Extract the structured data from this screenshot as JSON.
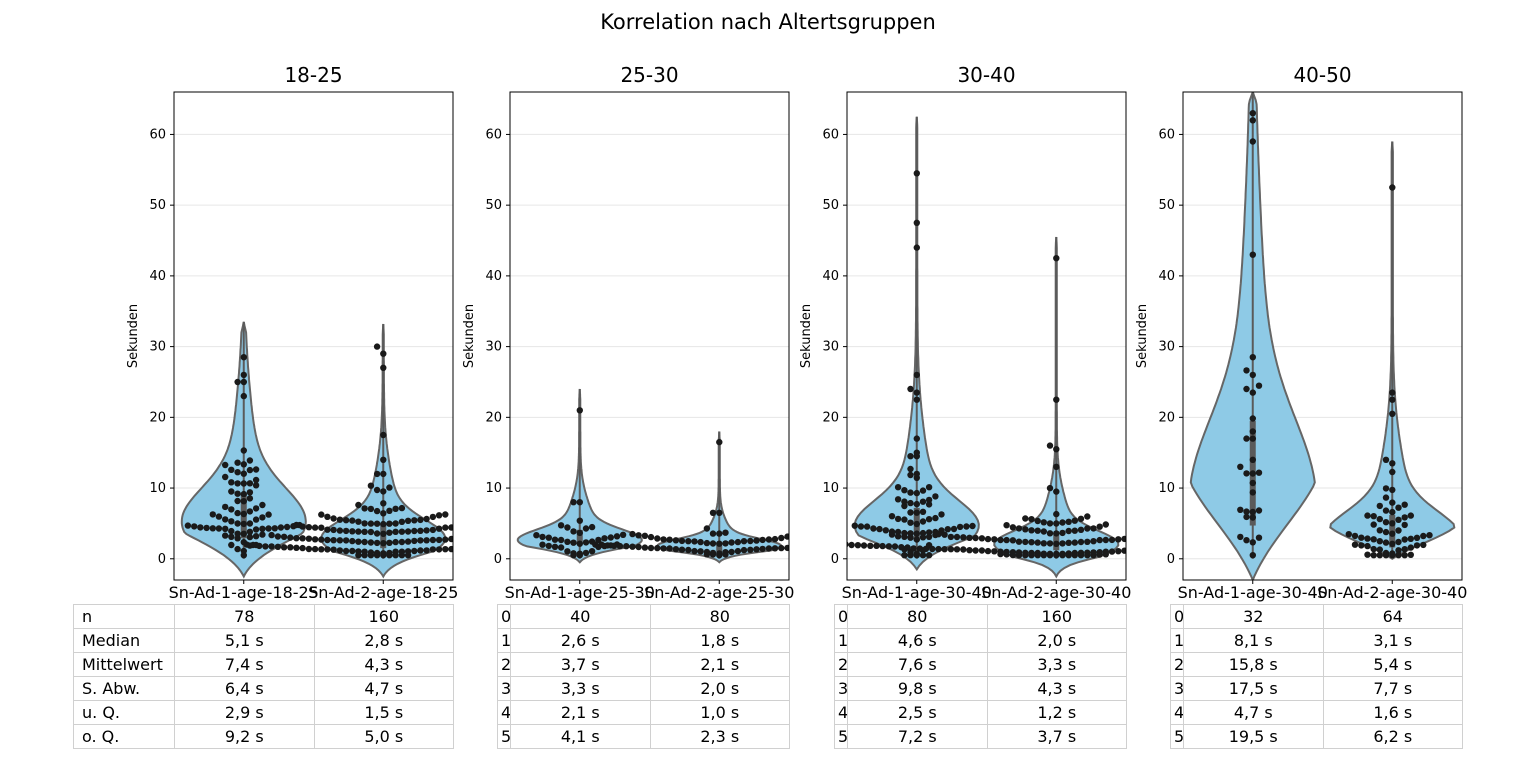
{
  "figure_title": "Korrelation nach Altertsgruppen",
  "colors": {
    "violin_fill": "#8ecae6",
    "violin_edge": "#666666",
    "dot": "#1a1a1a",
    "box": "#5a5a5a",
    "grid": "#e6e6e6"
  },
  "chart_data": [
    {
      "type": "violin",
      "title": "18-25",
      "ylabel": "Sekunden",
      "ylim": [
        -3,
        66
      ],
      "yticks": [
        0,
        10,
        20,
        30,
        40,
        50,
        60
      ],
      "grid": true,
      "categories": [
        "Sn-Ad-1-age-18-25",
        "Sn-Ad-2-age-18-25"
      ],
      "series": [
        {
          "n": 78,
          "median": 5.1,
          "mean": 7.4,
          "std": 6.4,
          "q1": 2.9,
          "q3": 9.2,
          "min": -2.5,
          "max": 33.5,
          "outliers": [
            28.5,
            26,
            25,
            25,
            23
          ]
        },
        {
          "n": 160,
          "median": 2.8,
          "mean": 4.3,
          "std": 4.7,
          "q1": 1.5,
          "q3": 5.0,
          "min": -2.5,
          "max": 33.2,
          "outliers": [
            30,
            29,
            27,
            17.5,
            14,
            12,
            12
          ]
        }
      ],
      "table": {
        "row_labels": [
          "n",
          "Median",
          "Mittelwert",
          "S. Abw.",
          "u. Q.",
          "o. Q."
        ],
        "rows": [
          [
            "78",
            "160"
          ],
          [
            "5,1 s",
            "2,8 s"
          ],
          [
            "7,4 s",
            "4,3 s"
          ],
          [
            "6,4 s",
            "4,7 s"
          ],
          [
            "2,9 s",
            "1,5 s"
          ],
          [
            "9,2 s",
            "5,0 s"
          ]
        ]
      }
    },
    {
      "type": "violin",
      "title": "25-30",
      "ylabel": "Sekunden",
      "ylim": [
        -3,
        66
      ],
      "yticks": [
        0,
        10,
        20,
        30,
        40,
        50,
        60
      ],
      "grid": true,
      "categories": [
        "Sn-Ad-1-age-25-30",
        "Sn-Ad-2-age-25-30"
      ],
      "series": [
        {
          "n": 40,
          "median": 2.6,
          "mean": 3.7,
          "std": 3.3,
          "q1": 2.1,
          "q3": 4.1,
          "min": -0.5,
          "max": 24,
          "outliers": [
            21,
            8,
            8
          ]
        },
        {
          "n": 80,
          "median": 1.8,
          "mean": 2.1,
          "std": 2.0,
          "q1": 1.0,
          "q3": 2.3,
          "min": -0.5,
          "max": 18,
          "outliers": [
            16.5,
            6.5,
            6.5
          ]
        }
      ],
      "table": {
        "row_labels": [
          "0",
          "1",
          "2",
          "3",
          "4",
          "5"
        ],
        "rows": [
          [
            "40",
            "80"
          ],
          [
            "2,6 s",
            "1,8 s"
          ],
          [
            "3,7 s",
            "2,1 s"
          ],
          [
            "3,3 s",
            "2,0 s"
          ],
          [
            "2,1 s",
            "1,0 s"
          ],
          [
            "4,1 s",
            "2,3 s"
          ]
        ]
      }
    },
    {
      "type": "violin",
      "title": "30-40",
      "ylabel": "Sekunden",
      "ylim": [
        -3,
        66
      ],
      "yticks": [
        0,
        10,
        20,
        30,
        40,
        50,
        60
      ],
      "grid": true,
      "categories": [
        "Sn-Ad-1-age-30-40",
        "Sn-Ad-2-age-30-40"
      ],
      "series": [
        {
          "n": 80,
          "median": 4.6,
          "mean": 7.6,
          "std": 9.8,
          "q1": 2.5,
          "q3": 7.2,
          "min": -1.5,
          "max": 62.5,
          "outliers": [
            54.5,
            47.5,
            44,
            26,
            24,
            23.5,
            22.5,
            17,
            15,
            14.5,
            14.5,
            12
          ]
        },
        {
          "n": 160,
          "median": 2.0,
          "mean": 3.3,
          "std": 4.3,
          "q1": 1.2,
          "q3": 3.7,
          "min": -2.5,
          "max": 45.5,
          "outliers": [
            42.5,
            22.5,
            16,
            15.5,
            13,
            10,
            9.5
          ]
        }
      ],
      "table": {
        "row_labels": [
          "0",
          "1",
          "2",
          "3",
          "4",
          "5"
        ],
        "rows": [
          [
            "80",
            "160"
          ],
          [
            "4,6 s",
            "2,0 s"
          ],
          [
            "7,6 s",
            "3,3 s"
          ],
          [
            "9,8 s",
            "4,3 s"
          ],
          [
            "2,5 s",
            "1,2 s"
          ],
          [
            "7,2 s",
            "3,7 s"
          ]
        ]
      }
    },
    {
      "type": "violin",
      "title": "40-50",
      "ylabel": "Sekunden",
      "ylim": [
        -3,
        66
      ],
      "yticks": [
        0,
        10,
        20,
        30,
        40,
        50,
        60
      ],
      "grid": true,
      "categories": [
        "Sn-Ad-1-age-30-40",
        "Sn-Ad-2-age-30-40"
      ],
      "series": [
        {
          "n": 32,
          "median": 8.1,
          "mean": 15.8,
          "std": 17.5,
          "q1": 4.7,
          "q3": 19.5,
          "min": -3,
          "max": 66,
          "outliers": [
            63,
            62,
            59,
            43,
            28.5,
            26,
            24,
            23.5,
            18,
            17,
            17,
            14,
            13
          ]
        },
        {
          "n": 64,
          "median": 3.1,
          "mean": 5.4,
          "std": 7.7,
          "q1": 1.6,
          "q3": 6.2,
          "min": 0,
          "max": 59,
          "outliers": [
            52.5,
            23.5,
            22.5,
            20.5,
            14,
            13.5
          ]
        }
      ],
      "table": {
        "row_labels": [
          "0",
          "1",
          "2",
          "3",
          "4",
          "5"
        ],
        "rows": [
          [
            "32",
            "64"
          ],
          [
            "8,1 s",
            "3,1 s"
          ],
          [
            "15,8 s",
            "5,4 s"
          ],
          [
            "17,5 s",
            "7,7 s"
          ],
          [
            "4,7 s",
            "1,6 s"
          ],
          [
            "19,5 s",
            "6,2 s"
          ]
        ]
      }
    }
  ]
}
